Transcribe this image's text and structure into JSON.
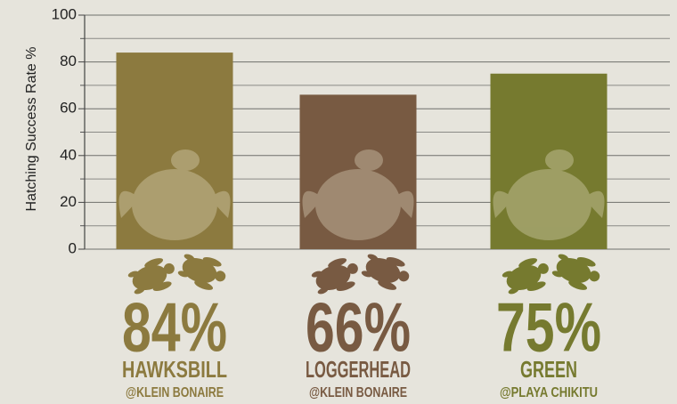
{
  "chart_data": {
    "type": "bar",
    "y_label": "Hatching Success Rate %",
    "categories": [
      "HAWKSBILL",
      "LOGGERHEAD",
      "GREEN"
    ],
    "sublabels": [
      "@KLEIN BONAIRE",
      "@KLEIN BONAIRE",
      "@PLAYA CHIKITU"
    ],
    "values": [
      84,
      66,
      75
    ],
    "value_labels": [
      "84%",
      "66%",
      "75%"
    ],
    "colors": [
      "#8c7a3f",
      "#785a42",
      "#767a2f"
    ],
    "ylim": [
      0,
      100
    ],
    "yticks": [
      0,
      20,
      40,
      60,
      80,
      100
    ],
    "minor_yticks": [
      10,
      30,
      50,
      70,
      90
    ],
    "grid": true
  }
}
